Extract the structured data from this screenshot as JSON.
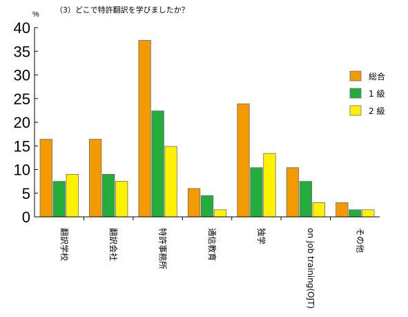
{
  "chart_data": {
    "type": "bar",
    "title": "（3）どこで特許翻訳を学びましたか？",
    "ylabel": "%",
    "ylim": [
      0,
      40
    ],
    "yticks": [
      0,
      5,
      10,
      15,
      20,
      25,
      30,
      35,
      40
    ],
    "grid": false,
    "legend_position": "right",
    "categories": [
      "翻訳学校",
      "翻訳会社",
      "特許事務所",
      "通信教育",
      "独学",
      "on job training(OJT)",
      "その他"
    ],
    "series": [
      {
        "name": "総合",
        "color": "#f39a00",
        "values": [
          16.4,
          16.4,
          37.3,
          6.0,
          23.9,
          10.4,
          3.0
        ]
      },
      {
        "name": "1 級",
        "color": "#24ad3c",
        "values": [
          7.5,
          9.0,
          22.4,
          4.5,
          10.4,
          7.5,
          1.5
        ]
      },
      {
        "name": "2 級",
        "color": "#fff200",
        "values": [
          9.0,
          7.5,
          14.9,
          1.5,
          13.4,
          3.0,
          1.5
        ]
      }
    ]
  }
}
